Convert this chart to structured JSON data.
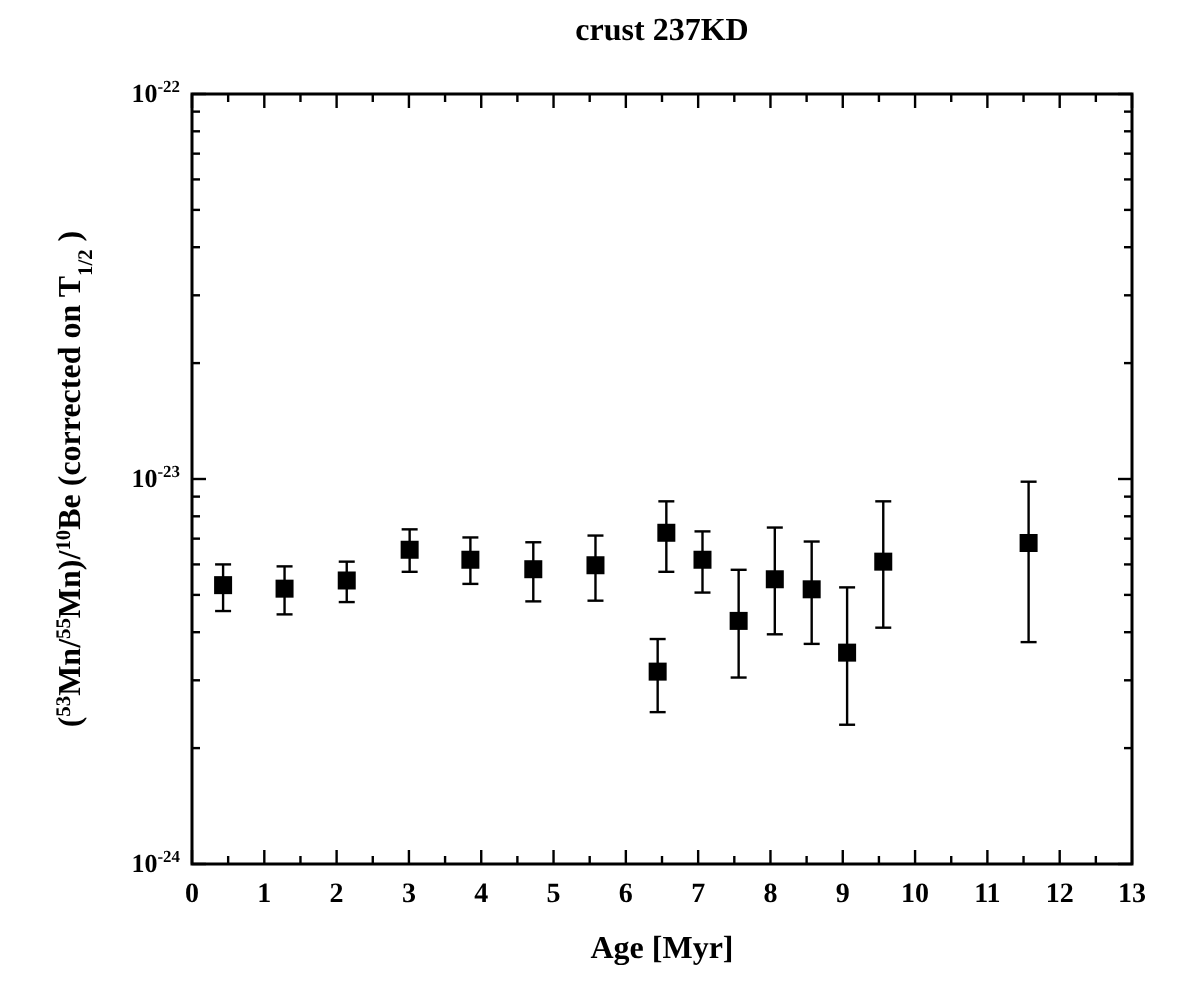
{
  "chart_data": {
    "type": "scatter",
    "title": "crust 237KD",
    "xlabel": "Age [Myr]",
    "ylabel": "($^{53}$Mn/$^{55}$Mn)/$^{10}$Be (corrected on T$_{1/2}$ )",
    "x": [
      0.43,
      1.28,
      2.14,
      3.01,
      3.85,
      4.72,
      5.58,
      6.44,
      6.56,
      7.06,
      7.56,
      8.06,
      8.57,
      9.06,
      9.56,
      11.57
    ],
    "series": [
      {
        "color": "#000000",
        "values": [
          5.3e-24,
          5.19e-24,
          5.45e-24,
          6.55e-24,
          6.17e-24,
          5.83e-24,
          5.97e-24,
          3.16e-24,
          7.25e-24,
          6.17e-24,
          4.28e-24,
          5.49e-24,
          5.17e-24,
          3.54e-24,
          6.1e-24,
          6.82e-24
        ],
        "errors": [
          [
            4.54e-24,
            6e-24
          ],
          [
            4.45e-24,
            5.93e-24
          ],
          [
            4.79e-24,
            6.1e-24
          ],
          [
            5.74e-24,
            7.4e-24
          ],
          [
            5.34e-24,
            7.05e-24
          ],
          [
            4.81e-24,
            6.85e-24
          ],
          [
            4.83e-24,
            7.13e-24
          ],
          [
            2.48e-24,
            3.84e-24
          ],
          [
            5.74e-24,
            8.75e-24
          ],
          [
            5.07e-24,
            7.31e-24
          ],
          [
            3.05e-24,
            5.81e-24
          ],
          [
            3.95e-24,
            7.48e-24
          ],
          [
            3.73e-24,
            6.88e-24
          ],
          [
            2.3e-24,
            5.23e-24
          ],
          [
            4.11e-24,
            8.75e-24
          ],
          [
            3.77e-24,
            9.84e-24
          ]
        ]
      }
    ],
    "marker": "square",
    "log": true,
    "grid": false,
    "xlim": [
      0,
      13
    ],
    "xticks": [
      0,
      {
        "value": 0.5,
        "label": null
      },
      1,
      {
        "value": 1.5,
        "label": null
      },
      2,
      {
        "value": 2.5,
        "label": null
      },
      3,
      {
        "value": 3.5,
        "label": null
      },
      4,
      {
        "value": 4.5,
        "label": null
      },
      5,
      {
        "value": 5.5,
        "label": null
      },
      6,
      {
        "value": 6.5,
        "label": null
      },
      7,
      {
        "value": 7.5,
        "label": null
      },
      8,
      {
        "value": 8.5,
        "label": null
      },
      9,
      {
        "value": 9.5,
        "label": null
      },
      10,
      {
        "value": 10.5,
        "label": null
      },
      11,
      {
        "value": 11.5,
        "label": null
      },
      12,
      {
        "value": 12.5,
        "label": null
      },
      13
    ],
    "ylim": [
      1e-24,
      1e-22
    ],
    "yticks": [
      {
        "value": 1e-24,
        "label": "10$^{-24}$"
      },
      {
        "value": 2e-24,
        "label": null
      },
      {
        "value": 3e-24,
        "label": null
      },
      {
        "value": 4e-24,
        "label": null
      },
      {
        "value": 5e-24,
        "label": null
      },
      {
        "value": 6e-24,
        "label": null
      },
      {
        "value": 7e-24,
        "label": null
      },
      {
        "value": 8e-24,
        "label": null
      },
      {
        "value": 9e-24,
        "label": null
      },
      {
        "value": 1e-23,
        "label": "10$^{-23}$"
      },
      {
        "value": 2e-23,
        "label": null
      },
      {
        "value": 3e-23,
        "label": null
      },
      {
        "value": 4e-23,
        "label": null
      },
      {
        "value": 5e-23,
        "label": null
      },
      {
        "value": 6e-23,
        "label": null
      },
      {
        "value": 7e-23,
        "label": null
      },
      {
        "value": 8e-23,
        "label": null
      },
      {
        "value": 9e-23,
        "label": null
      },
      {
        "value": 1e-22,
        "label": "10$^{-22}$"
      }
    ]
  }
}
